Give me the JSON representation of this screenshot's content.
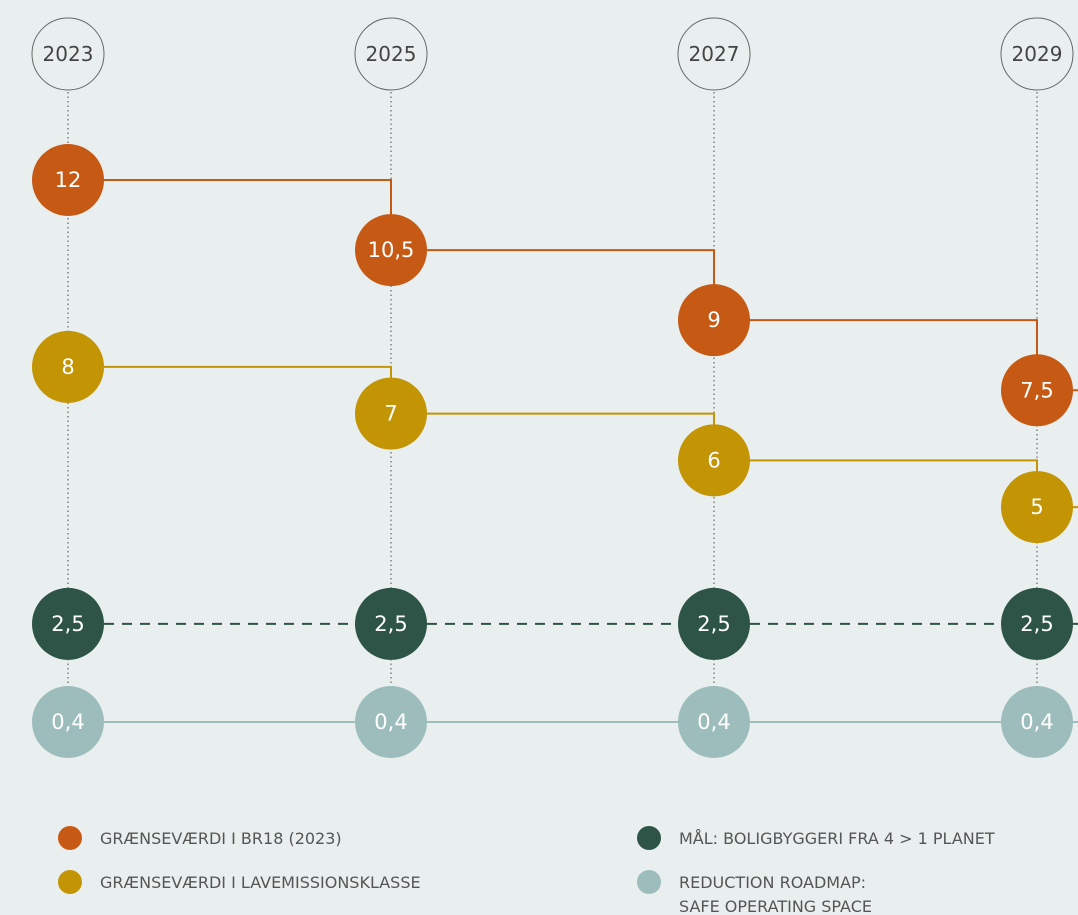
{
  "chart_data": {
    "type": "line",
    "categories": [
      "2023",
      "2025",
      "2027",
      "2029"
    ],
    "series": [
      {
        "name": "GRÆNSEVÆRDI I BR18 (2023)",
        "color": "#c65a14",
        "step": true,
        "values": [
          12,
          10.5,
          9,
          7.5
        ],
        "value_labels": [
          "12",
          "10,5",
          "9",
          "7,5"
        ]
      },
      {
        "name": "GRÆNSEVÆRDI I LAVEMISSIONSKLASSE",
        "color": "#c39403",
        "step": true,
        "values": [
          8,
          7,
          6,
          5
        ],
        "value_labels": [
          "8",
          "7",
          "6",
          "5"
        ]
      },
      {
        "name": "MÅL: BOLIGBYGGERI FRA 4 > 1 PLANET",
        "color": "#2d5446",
        "dashed": true,
        "values": [
          2.5,
          2.5,
          2.5,
          2.5
        ],
        "value_labels": [
          "2,5",
          "2,5",
          "2,5",
          "2,5"
        ]
      },
      {
        "name": "REDUCTION ROADMAP:\nSAFE OPERATING SPACE",
        "color": "#9dbdbd",
        "values": [
          0.4,
          0.4,
          0.4,
          0.4
        ],
        "value_labels": [
          "0,4",
          "0,4",
          "0,4",
          "0,4"
        ]
      }
    ]
  }
}
